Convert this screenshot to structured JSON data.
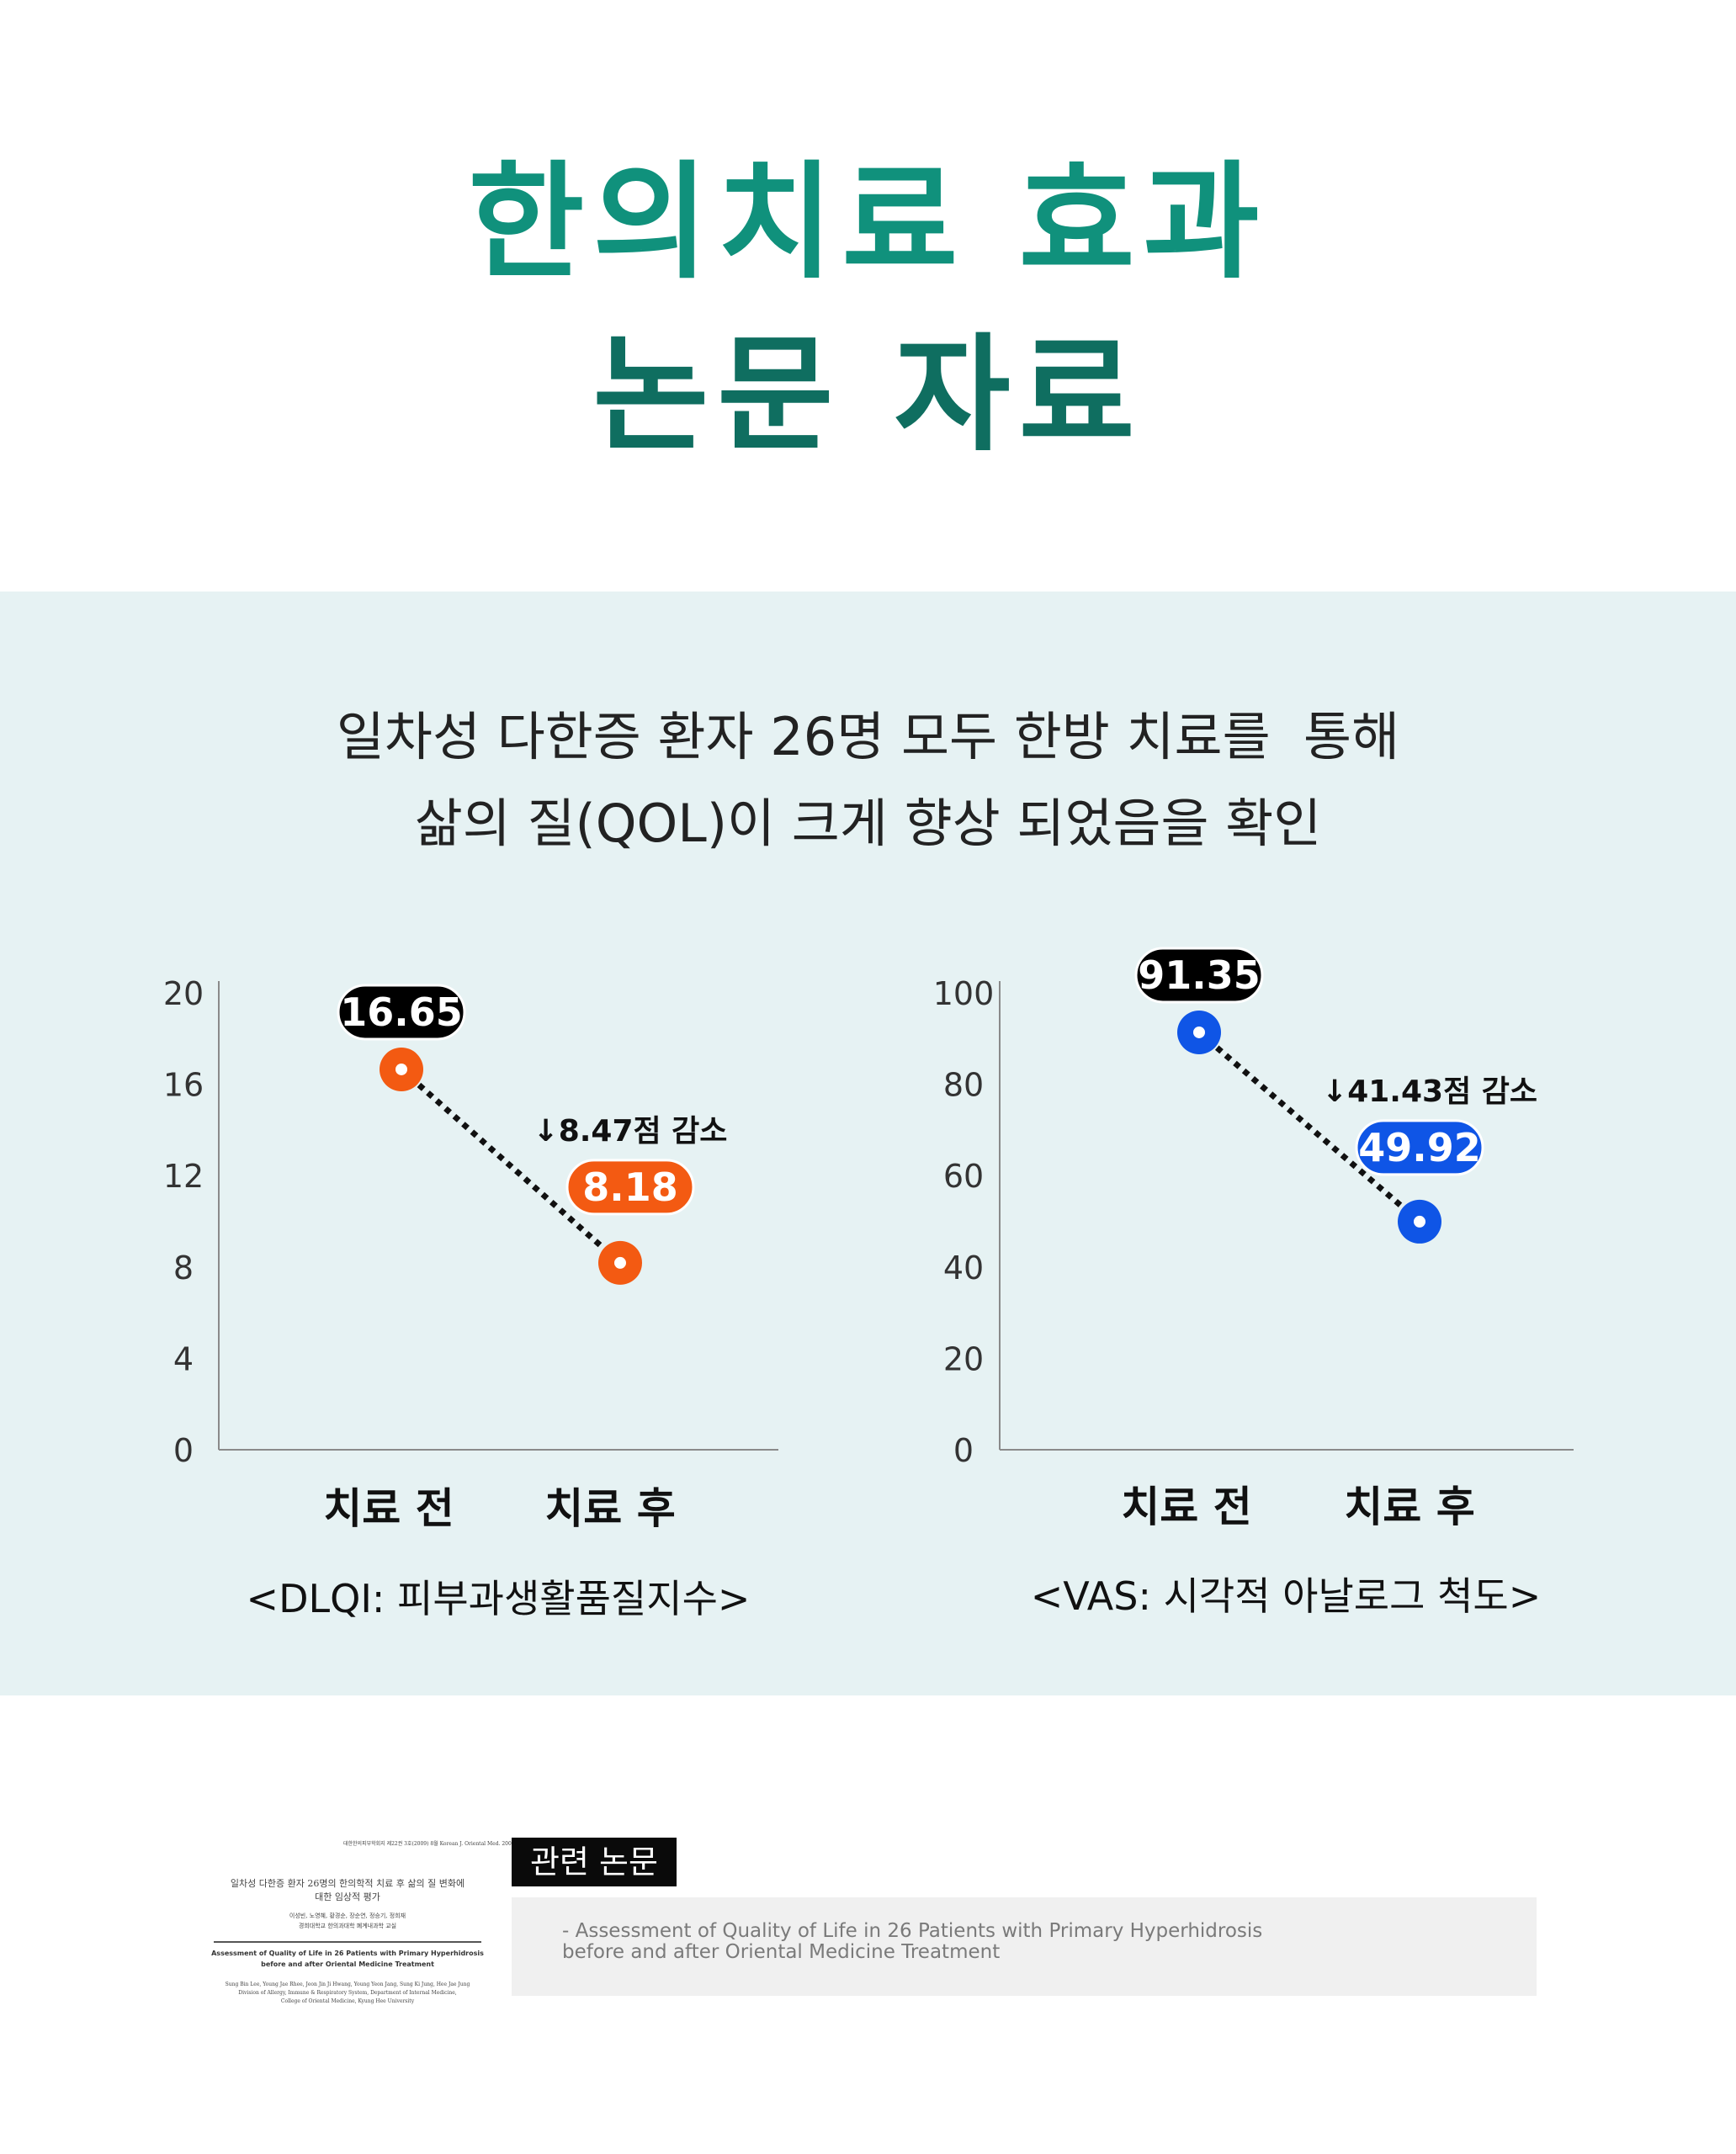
{
  "header": {
    "title_line1": "한의치료 효과",
    "title_line2": "논문 자료",
    "title_color_1": "#10917c",
    "title_color_2": "#0f6e60"
  },
  "summary": {
    "line1": "일차성 다한증 환자 26명 모두 한방 치료를  통해",
    "line2": "삶의 질(QOL)이 크게 향상 되었음을 확인"
  },
  "chart_data": [
    {
      "type": "line",
      "title": "<DLQI: 피부과생활품질지수>",
      "categories": [
        "치료 전",
        "치료 후"
      ],
      "values": [
        16.65,
        8.18
      ],
      "value_labels": [
        "16.65",
        "8.18"
      ],
      "annotation": "↓8.47점 감소",
      "yticks": [
        "20",
        "16",
        "12",
        "8",
        "4",
        "0"
      ],
      "ylim": [
        0,
        20
      ],
      "color": "#f35a12",
      "first_label_color": "#000000",
      "line_style": "dotted",
      "grid": false
    },
    {
      "type": "line",
      "title": "<VAS: 시각적 아날로그  척도>",
      "categories": [
        "치료 전",
        "치료 후"
      ],
      "values": [
        91.35,
        49.92
      ],
      "value_labels": [
        "91.35",
        "49.92"
      ],
      "annotation": "↓41.43점 감소",
      "yticks": [
        "100",
        "80",
        "60",
        "40",
        "20",
        "0"
      ],
      "ylim": [
        0,
        100
      ],
      "color": "#0f55e6",
      "first_label_color": "#000000",
      "line_style": "dotted",
      "grid": false
    }
  ],
  "related": {
    "badge": "관련 논문",
    "reference": "- Assessment of Quality of Life in 26 Patients with Primary Hyperhidrosis\nbefore and after Oriental Medicine Treatment"
  },
  "thumbnail": {
    "journal": "대한한의피부학회지 제22권 3호(2009) 8월 Korean J. Oriental Med. 2009;22(3):67-86",
    "title_ko_1": "일차성 다한증 환자 26명의 한의학적 치료 후 삶의 질 변화에",
    "title_ko_2": "대한 임상적 평가",
    "authors": "이성빈, 노영혜, 황경순, 장순연, 정승기, 정희재",
    "affiliation": "경희대학교 한의과대학 폐계내과학 교실",
    "title_en_1": "Assessment of Quality of Life in 26 Patients with Primary Hyperhidrosis",
    "title_en_2": "before and after Oriental Medicine Treatment",
    "authors_en": "Sung Bin Lee, Young Jae Rhee, Jeon Jin Ji Hwang, Young Yeon Jang, Sung Ki Jung, Hee Jae Jung",
    "affil_en_1": "Division of Allergy, Immune & Respiratory System, Department of Internal Medicine,",
    "affil_en_2": "College of Oriental Medicine, Kyung Hee University"
  }
}
